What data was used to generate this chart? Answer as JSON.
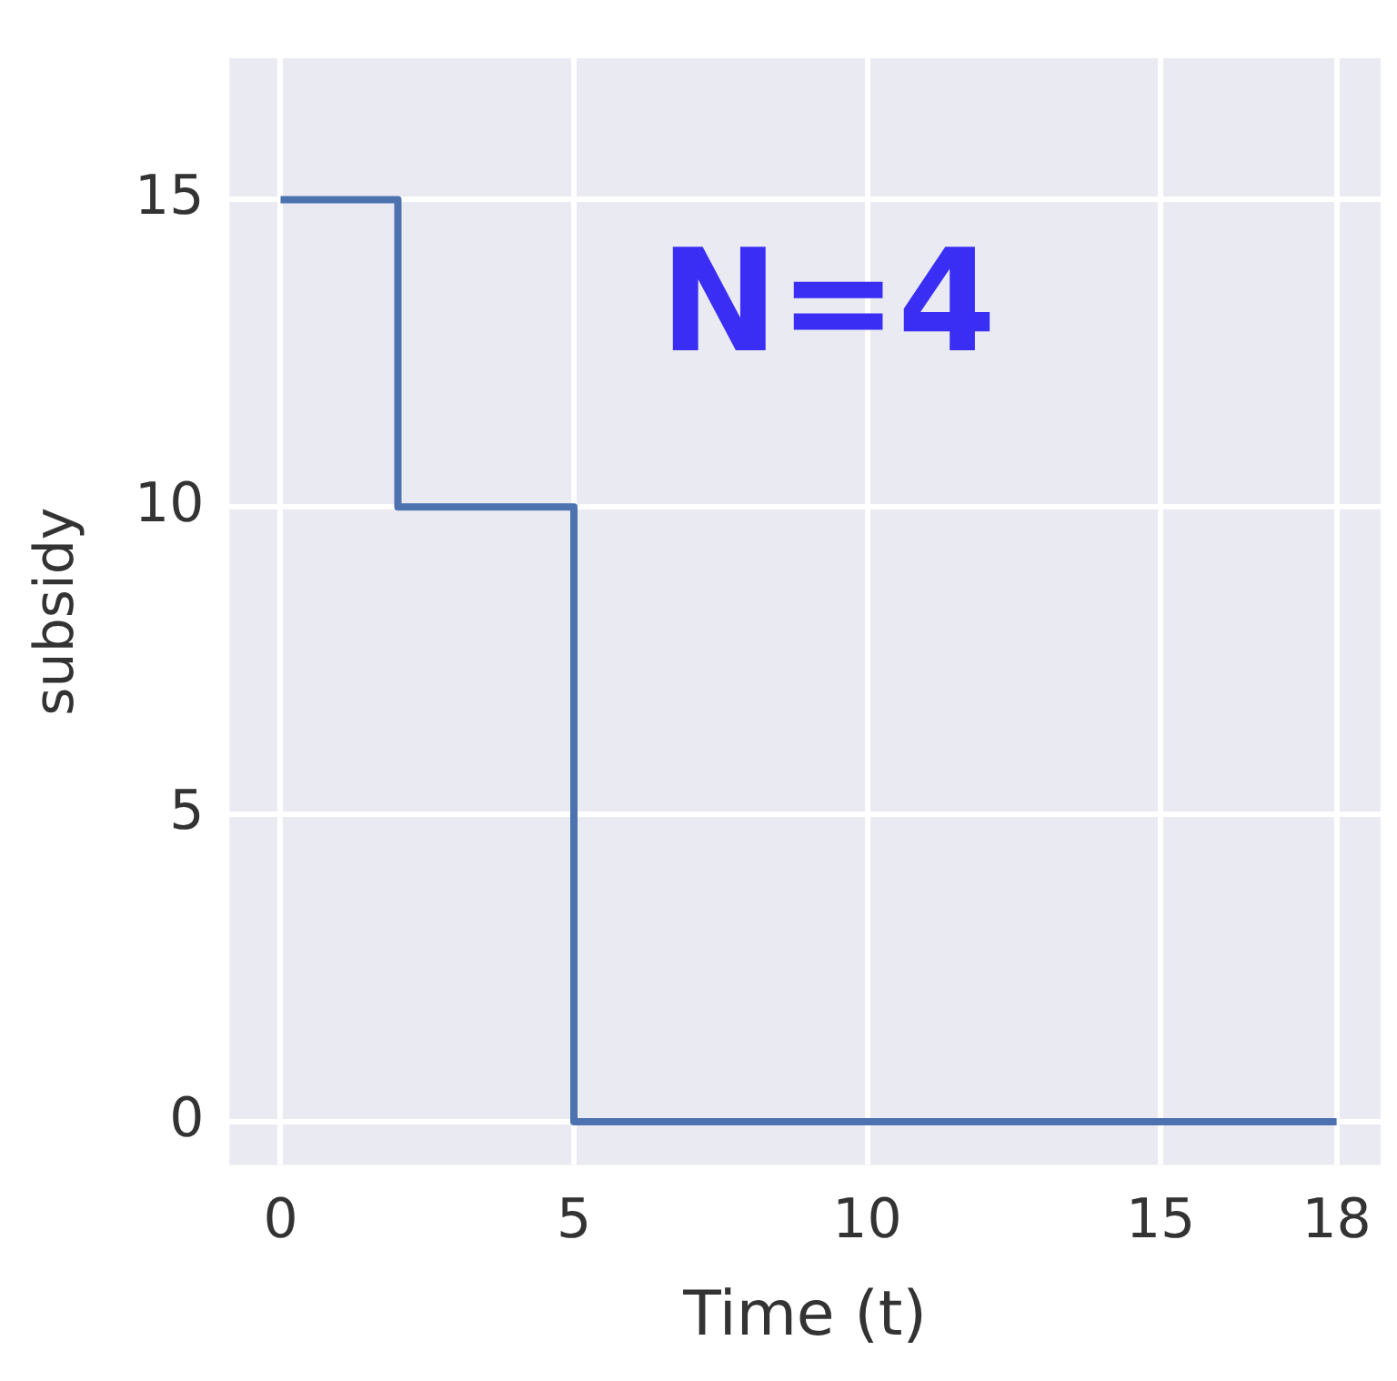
{
  "chart_data": {
    "type": "step",
    "xlabel": "Time (t)",
    "ylabel": "subsidy",
    "annotations": [
      "N=4"
    ],
    "x": [
      0,
      2,
      5,
      18
    ],
    "series": [
      {
        "color": "#4c72b0",
        "values": [
          15,
          10,
          0,
          0
        ]
      }
    ],
    "xlim": [
      -0.87,
      18.75
    ],
    "ylim": [
      -0.7,
      17.3
    ],
    "xticks": [
      0,
      5,
      10,
      15,
      18
    ],
    "yticks": [
      0,
      5,
      10,
      15
    ],
    "grid": true,
    "legend": false,
    "marker": "none",
    "line_style": "solid"
  }
}
